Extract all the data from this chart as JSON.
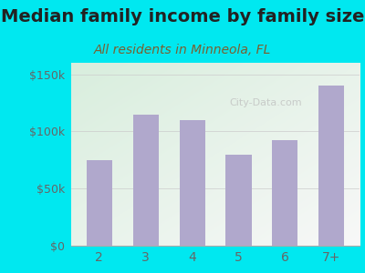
{
  "title": "Median family income by family size",
  "subtitle": "All residents in Minneola, FL",
  "categories": [
    "2",
    "3",
    "4",
    "5",
    "6",
    "7+"
  ],
  "values": [
    75000,
    115000,
    110000,
    80000,
    92000,
    140000
  ],
  "bar_color": "#b0a8cc",
  "title_fontsize": 14,
  "subtitle_fontsize": 10,
  "title_color": "#222222",
  "subtitle_color": "#7a6030",
  "tick_color": "#666666",
  "background_outer": "#00e8f0",
  "background_inner_topleft": "#d8eedd",
  "background_inner_bottomright": "#f8f8f8",
  "ylim": [
    0,
    160000
  ],
  "yticks": [
    0,
    50000,
    100000,
    150000
  ],
  "ytick_labels": [
    "$0",
    "$50k",
    "$100k",
    "$150k"
  ],
  "watermark": "City-Data.com",
  "watermark_color": "#bbbbbb"
}
